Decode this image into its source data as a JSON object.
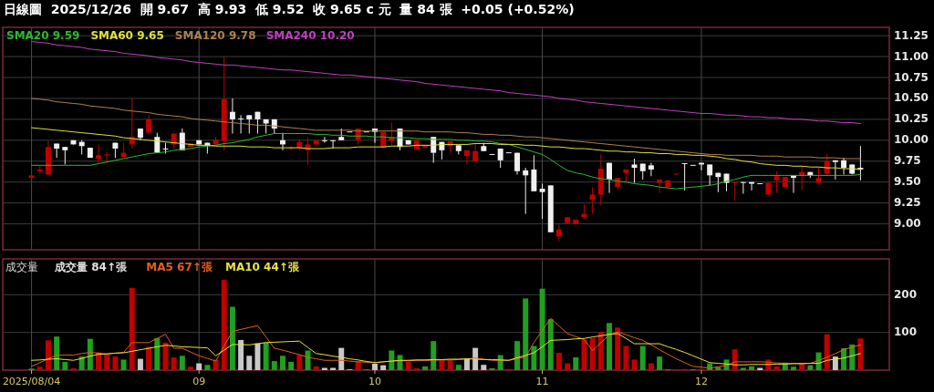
{
  "chart_data": [
    {
      "type": "candlestick",
      "title": "日線圖  2025/12/26  開 9.67  高 9.93  低 9.52  收 9.65 c 元  量 84 張  +0.05 (+0.52%)",
      "categories": [
        "2025/08/04",
        null,
        null,
        null,
        null,
        null,
        null,
        null,
        null,
        null,
        null,
        null,
        null,
        null,
        null,
        null,
        null,
        null,
        null,
        null,
        "09",
        null,
        null,
        null,
        null,
        null,
        null,
        null,
        null,
        null,
        null,
        null,
        null,
        null,
        null,
        null,
        null,
        null,
        null,
        null,
        null,
        "10",
        null,
        null,
        null,
        null,
        null,
        null,
        null,
        null,
        null,
        null,
        null,
        null,
        null,
        null,
        null,
        null,
        null,
        null,
        null,
        "11",
        null,
        null,
        null,
        null,
        null,
        null,
        null,
        null,
        null,
        null,
        null,
        null,
        null,
        null,
        null,
        null,
        null,
        null,
        "12",
        null,
        null,
        null,
        null,
        null,
        null,
        null,
        null,
        null,
        null,
        null,
        null,
        null,
        null,
        null,
        null,
        null,
        null,
        null
      ],
      "ohlc": [
        [
          9.55,
          9.59,
          9.54,
          9.58
        ],
        [
          9.63,
          9.7,
          9.6,
          9.65
        ],
        [
          9.59,
          9.99,
          9.59,
          9.92
        ],
        [
          9.96,
          9.96,
          9.79,
          9.9
        ],
        [
          9.92,
          9.92,
          9.71,
          9.88
        ],
        [
          10.0,
          10.0,
          9.95,
          9.95
        ],
        [
          9.98,
          10.0,
          9.83,
          9.93
        ],
        [
          9.91,
          9.91,
          9.79,
          9.79
        ],
        [
          9.78,
          9.95,
          9.73,
          9.82
        ],
        [
          9.82,
          9.86,
          9.72,
          9.83
        ],
        [
          9.97,
          9.97,
          9.79,
          9.9
        ],
        [
          9.8,
          9.97,
          9.8,
          9.85
        ],
        [
          9.95,
          10.5,
          9.9,
          10.04
        ],
        [
          10.14,
          10.14,
          10.0,
          10.03
        ],
        [
          10.09,
          10.3,
          10.09,
          10.25
        ],
        [
          10.04,
          10.09,
          9.85,
          9.85
        ],
        [
          9.9,
          9.97,
          9.84,
          9.89
        ],
        [
          9.95,
          10.08,
          9.9,
          10.08
        ],
        [
          10.09,
          10.14,
          9.88,
          9.88
        ],
        [
          9.92,
          9.96,
          9.92,
          9.96
        ],
        [
          10.0,
          10.0,
          9.95,
          9.95
        ],
        [
          9.97,
          9.97,
          9.84,
          9.94
        ],
        [
          9.95,
          10.04,
          9.95,
          10.0
        ],
        [
          9.99,
          11.0,
          9.88,
          10.49
        ],
        [
          10.34,
          10.5,
          10.08,
          10.25
        ],
        [
          10.26,
          10.3,
          10.08,
          10.25
        ],
        [
          10.3,
          10.3,
          10.08,
          10.25
        ],
        [
          10.34,
          10.34,
          10.08,
          10.25
        ],
        [
          10.25,
          10.25,
          10.08,
          10.2
        ],
        [
          10.25,
          10.25,
          10.08,
          10.14
        ],
        [
          10.0,
          10.09,
          9.88,
          9.95
        ],
        [
          9.9,
          9.93,
          9.88,
          9.91
        ],
        [
          9.91,
          10.01,
          9.88,
          9.98
        ],
        [
          9.88,
          10.03,
          9.71,
          9.95
        ],
        [
          9.95,
          10.0,
          9.95,
          10.0
        ],
        [
          10.0,
          10.04,
          9.97,
          9.99
        ],
        [
          10.0,
          10.0,
          9.9,
          9.99
        ],
        [
          10.04,
          10.14,
          10.0,
          10.0
        ],
        [
          10.1,
          10.1,
          10.1,
          10.1
        ],
        [
          10.0,
          10.14,
          9.95,
          10.14
        ],
        [
          10.1,
          10.1,
          10.1,
          10.1
        ],
        [
          10.14,
          10.14,
          9.97,
          10.1
        ],
        [
          9.91,
          10.1,
          9.91,
          10.1
        ],
        [
          9.99,
          10.21,
          9.94,
          10.04
        ],
        [
          10.14,
          10.14,
          9.88,
          9.92
        ],
        [
          10.0,
          10.0,
          9.95,
          9.95
        ],
        [
          9.89,
          10.0,
          9.89,
          10.0
        ],
        [
          9.91,
          9.94,
          9.91,
          9.94
        ],
        [
          10.04,
          10.04,
          9.73,
          9.85
        ],
        [
          9.98,
          9.98,
          9.77,
          9.88
        ],
        [
          9.93,
          9.99,
          9.85,
          9.99
        ],
        [
          9.94,
          9.94,
          9.83,
          9.87
        ],
        [
          9.81,
          9.88,
          9.71,
          9.88
        ],
        [
          9.75,
          9.96,
          9.75,
          9.87
        ],
        [
          9.93,
          9.97,
          9.87,
          9.87
        ],
        [
          9.83,
          9.83,
          9.83,
          9.83
        ],
        [
          9.9,
          9.9,
          9.67,
          9.76
        ],
        [
          9.85,
          9.85,
          9.85,
          9.85
        ],
        [
          9.85,
          9.85,
          9.59,
          9.63
        ],
        [
          9.64,
          9.67,
          9.12,
          9.58
        ],
        [
          9.65,
          9.82,
          9.39,
          9.39
        ],
        [
          9.42,
          9.48,
          9.06,
          9.38
        ],
        [
          9.46,
          9.46,
          8.9,
          8.9
        ],
        [
          8.85,
          8.99,
          8.79,
          8.93
        ],
        [
          9.01,
          9.08,
          9.01,
          9.08
        ],
        [
          9.0,
          9.05,
          9.0,
          9.05
        ],
        [
          9.08,
          9.23,
          9.06,
          9.12
        ],
        [
          9.29,
          9.44,
          9.12,
          9.35
        ],
        [
          9.35,
          9.83,
          9.22,
          9.66
        ],
        [
          9.73,
          9.73,
          9.37,
          9.53
        ],
        [
          9.44,
          9.55,
          9.41,
          9.55
        ],
        [
          9.61,
          9.65,
          9.5,
          9.65
        ],
        [
          9.71,
          9.78,
          9.49,
          9.67
        ],
        [
          9.72,
          9.72,
          9.53,
          9.63
        ],
        [
          9.7,
          9.73,
          9.57,
          9.65
        ],
        [
          9.49,
          9.53,
          9.37,
          9.53
        ],
        [
          9.44,
          9.52,
          9.44,
          9.52
        ],
        [
          9.59,
          9.6,
          9.59,
          9.6
        ],
        [
          9.72,
          9.72,
          9.4,
          9.72
        ],
        [
          9.7,
          9.7,
          9.7,
          9.7
        ],
        [
          9.73,
          9.73,
          9.64,
          9.71
        ],
        [
          9.71,
          9.71,
          9.46,
          9.58
        ],
        [
          9.61,
          9.61,
          9.38,
          9.56
        ],
        [
          9.6,
          9.6,
          9.39,
          9.49
        ],
        [
          9.49,
          9.5,
          9.28,
          9.5
        ],
        [
          9.5,
          9.5,
          9.36,
          9.49
        ],
        [
          9.5,
          9.5,
          9.4,
          9.48
        ],
        [
          9.48,
          9.48,
          9.48,
          9.48
        ],
        [
          9.35,
          9.49,
          9.35,
          9.49
        ],
        [
          9.52,
          9.63,
          9.37,
          9.57
        ],
        [
          9.44,
          9.56,
          9.44,
          9.56
        ],
        [
          9.58,
          9.58,
          9.37,
          9.55
        ],
        [
          9.58,
          9.69,
          9.41,
          9.62
        ],
        [
          9.62,
          9.62,
          9.55,
          9.58
        ],
        [
          9.49,
          9.68,
          9.49,
          9.55
        ],
        [
          9.6,
          9.83,
          9.57,
          9.75
        ],
        [
          9.76,
          9.76,
          9.53,
          9.74
        ],
        [
          9.76,
          9.79,
          9.59,
          9.67
        ],
        [
          9.71,
          9.71,
          9.59,
          9.6
        ],
        [
          9.67,
          9.93,
          9.52,
          9.65
        ]
      ],
      "colors": [
        "#c00000",
        "#c00000",
        "#c00000",
        "#f0f0f0",
        "#f0f0f0",
        "#f0f0f0",
        "#f0f0f0",
        "#f0f0f0",
        "#c00000",
        "#c00000",
        "#f0f0f0",
        "#c00000",
        "#c00000",
        "#f0f0f0",
        "#c00000",
        "#f0f0f0",
        "#f0f0f0",
        "#c00000",
        "#f0f0f0",
        "#c00000",
        "#f0f0f0",
        "#f0f0f0",
        "#c00000",
        "#c00000",
        "#f0f0f0",
        "#f0f0f0",
        "#f0f0f0",
        "#f0f0f0",
        "#f0f0f0",
        "#f0f0f0",
        "#f0f0f0",
        "#c00000",
        "#c00000",
        "#c00000",
        "#c00000",
        "#f0f0f0",
        "#f0f0f0",
        "#f0f0f0",
        "#f0f0f0",
        "#c00000",
        "#f0f0f0",
        "#f0f0f0",
        "#c00000",
        "#c00000",
        "#f0f0f0",
        "#f0f0f0",
        "#c00000",
        "#c00000",
        "#f0f0f0",
        "#f0f0f0",
        "#c00000",
        "#f0f0f0",
        "#c00000",
        "#c00000",
        "#f0f0f0",
        "#f0f0f0",
        "#f0f0f0",
        "#f0f0f0",
        "#f0f0f0",
        "#f0f0f0",
        "#f0f0f0",
        "#f0f0f0",
        "#f0f0f0",
        "#c00000",
        "#c00000",
        "#c00000",
        "#c00000",
        "#c00000",
        "#c00000",
        "#f0f0f0",
        "#c00000",
        "#c00000",
        "#f0f0f0",
        "#f0f0f0",
        "#f0f0f0",
        "#c00000",
        "#c00000",
        "#c00000",
        "#f0f0f0",
        "#f0f0f0",
        "#f0f0f0",
        "#f0f0f0",
        "#f0f0f0",
        "#f0f0f0",
        "#c00000",
        "#f0f0f0",
        "#f0f0f0",
        "#f0f0f0",
        "#c00000",
        "#c00000",
        "#c00000",
        "#f0f0f0",
        "#c00000",
        "#f0f0f0",
        "#c00000",
        "#c00000",
        "#f0f0f0",
        "#f0f0f0",
        "#f0f0f0",
        "#f0f0f0"
      ],
      "series": [
        {
          "type": "line",
          "name": "SMA20 9.59",
          "color": "#2eb82e",
          "values": [
            9.7,
            9.7,
            9.7,
            9.7,
            9.7,
            9.7,
            9.7,
            9.7,
            9.72,
            9.74,
            9.76,
            9.78,
            9.8,
            9.82,
            9.84,
            9.85,
            9.86,
            9.88,
            9.89,
            9.9,
            9.92,
            9.93,
            9.94,
            9.96,
            9.97,
            9.99,
            10.01,
            10.04,
            10.06,
            10.08,
            10.08,
            10.08,
            10.08,
            10.08,
            10.07,
            10.07,
            10.06,
            10.06,
            10.05,
            10.05,
            10.05,
            10.04,
            10.04,
            10.03,
            10.03,
            10.03,
            10.02,
            10.02,
            10.01,
            10.01,
            10.01,
            10.0,
            10.0,
            9.99,
            9.99,
            9.98,
            9.96,
            9.95,
            9.92,
            9.89,
            9.86,
            9.83,
            9.77,
            9.7,
            9.64,
            9.61,
            9.59,
            9.56,
            9.54,
            9.53,
            9.51,
            9.5,
            9.48,
            9.47,
            9.46,
            9.44,
            9.43,
            9.42,
            9.43,
            9.44,
            9.45,
            9.46,
            9.48,
            9.51,
            9.53,
            9.56,
            9.58,
            9.58,
            9.58,
            9.58,
            9.58,
            9.58,
            9.58,
            9.58,
            9.58,
            9.58,
            9.58,
            9.58,
            9.58,
            9.59
          ]
        },
        {
          "type": "line",
          "name": "SMA60 9.65",
          "color": "#e0e040",
          "values": [
            10.15,
            10.14,
            10.13,
            10.12,
            10.11,
            10.1,
            10.09,
            10.08,
            10.07,
            10.06,
            10.05,
            10.03,
            10.02,
            10.01,
            10.0,
            9.99,
            9.98,
            9.97,
            9.96,
            9.95,
            9.94,
            9.94,
            9.93,
            9.93,
            9.93,
            9.93,
            9.92,
            9.92,
            9.92,
            9.91,
            9.91,
            9.91,
            9.91,
            9.9,
            9.9,
            9.9,
            9.91,
            9.91,
            9.91,
            9.92,
            9.92,
            9.92,
            9.92,
            9.93,
            9.93,
            9.93,
            9.94,
            9.94,
            9.94,
            9.95,
            9.95,
            9.95,
            9.95,
            9.96,
            9.96,
            9.96,
            9.95,
            9.95,
            9.95,
            9.94,
            9.94,
            9.93,
            9.92,
            9.92,
            9.91,
            9.9,
            9.9,
            9.89,
            9.88,
            9.87,
            9.87,
            9.86,
            9.86,
            9.85,
            9.85,
            9.84,
            9.84,
            9.83,
            9.83,
            9.82,
            9.82,
            9.81,
            9.8,
            9.78,
            9.77,
            9.75,
            9.74,
            9.72,
            9.71,
            9.7,
            9.7,
            9.69,
            9.69,
            9.68,
            9.68,
            9.67,
            9.67,
            9.66,
            9.66,
            9.65
          ]
        },
        {
          "type": "line",
          "name": "SMA120 9.78",
          "color": "#b08050",
          "values": [
            10.5,
            10.49,
            10.48,
            10.46,
            10.45,
            10.44,
            10.43,
            10.41,
            10.4,
            10.39,
            10.38,
            10.36,
            10.35,
            10.34,
            10.33,
            10.31,
            10.3,
            10.29,
            10.28,
            10.26,
            10.25,
            10.24,
            10.23,
            10.22,
            10.21,
            10.2,
            10.19,
            10.18,
            10.18,
            10.17,
            10.16,
            10.15,
            10.14,
            10.13,
            10.12,
            10.12,
            10.12,
            10.12,
            10.12,
            10.11,
            10.11,
            10.11,
            10.11,
            10.11,
            10.11,
            10.11,
            10.11,
            10.1,
            10.1,
            10.1,
            10.1,
            10.09,
            10.09,
            10.08,
            10.07,
            10.07,
            10.06,
            10.06,
            10.05,
            10.04,
            10.04,
            10.03,
            10.02,
            10.01,
            10.0,
            9.99,
            9.98,
            9.97,
            9.96,
            9.95,
            9.94,
            9.93,
            9.92,
            9.91,
            9.9,
            9.89,
            9.88,
            9.87,
            9.86,
            9.85,
            9.84,
            9.83,
            9.83,
            9.82,
            9.82,
            9.82,
            9.82,
            9.81,
            9.81,
            9.81,
            9.8,
            9.8,
            9.8,
            9.8,
            9.79,
            9.79,
            9.79,
            9.78,
            9.78,
            9.78
          ]
        },
        {
          "type": "line",
          "name": "SMA240 10.20",
          "color": "#c040c0",
          "values": [
            11.18,
            11.17,
            11.16,
            11.14,
            11.13,
            11.12,
            11.11,
            11.09,
            11.08,
            11.07,
            11.06,
            11.04,
            11.03,
            11.02,
            11.01,
            10.99,
            10.98,
            10.97,
            10.96,
            10.94,
            10.93,
            10.92,
            10.91,
            10.9,
            10.9,
            10.89,
            10.88,
            10.87,
            10.86,
            10.85,
            10.84,
            10.84,
            10.83,
            10.82,
            10.81,
            10.8,
            10.79,
            10.78,
            10.78,
            10.77,
            10.76,
            10.75,
            10.74,
            10.73,
            10.72,
            10.71,
            10.7,
            10.68,
            10.67,
            10.66,
            10.65,
            10.64,
            10.63,
            10.62,
            10.61,
            10.6,
            10.59,
            10.57,
            10.56,
            10.55,
            10.54,
            10.53,
            10.52,
            10.5,
            10.49,
            10.48,
            10.46,
            10.45,
            10.44,
            10.43,
            10.42,
            10.41,
            10.4,
            10.39,
            10.38,
            10.37,
            10.36,
            10.35,
            10.34,
            10.33,
            10.32,
            10.32,
            10.31,
            10.3,
            10.3,
            10.29,
            10.28,
            10.28,
            10.27,
            10.27,
            10.26,
            10.25,
            10.25,
            10.24,
            10.23,
            10.23,
            10.22,
            10.21,
            10.21,
            10.2
          ]
        }
      ],
      "ylim": [
        8.69,
        11.35
      ],
      "yticks": [
        {
          "value": 9,
          "label": "9.00"
        },
        {
          "value": 9.25,
          "label": "9.25"
        },
        {
          "value": 9.5,
          "label": "9.50"
        },
        {
          "value": 9.75,
          "label": "9.75"
        },
        {
          "value": 10,
          "label": "10.00"
        },
        {
          "value": 10.25,
          "label": "10.25"
        },
        {
          "value": 10.5,
          "label": "10.50"
        },
        {
          "value": 10.75,
          "label": "10.75"
        },
        {
          "value": 11,
          "label": "11.00"
        },
        {
          "value": 11.25,
          "label": "11.25"
        }
      ],
      "grid": true,
      "tick_labels": "y",
      "legend": "top left"
    },
    {
      "type": "bar",
      "title": "成交量",
      "categories": [
        "2025/08/04",
        null,
        null,
        null,
        null,
        null,
        null,
        null,
        null,
        null,
        null,
        null,
        null,
        null,
        null,
        null,
        null,
        null,
        null,
        null,
        "09",
        null,
        null,
        null,
        null,
        null,
        null,
        null,
        null,
        null,
        null,
        null,
        null,
        null,
        null,
        null,
        null,
        null,
        null,
        null,
        null,
        "10",
        null,
        null,
        null,
        null,
        null,
        null,
        null,
        null,
        null,
        null,
        null,
        null,
        null,
        null,
        null,
        null,
        null,
        null,
        null,
        "11",
        null,
        null,
        null,
        null,
        null,
        null,
        null,
        null,
        null,
        null,
        null,
        null,
        null,
        null,
        null,
        null,
        null,
        null,
        "12",
        null,
        null,
        null,
        null,
        null,
        null,
        null,
        null,
        null,
        null,
        null,
        null,
        null,
        null,
        null,
        null,
        null,
        null,
        null
      ],
      "series": [
        {
          "type": "bar",
          "name": "成交量 84↑張",
          "color": "#e0e0e0",
          "colors": [
            "#1fa01f",
            "#c00000",
            "#c00000",
            "#1fa01f",
            "#1fa01f",
            "#c00000",
            "#1fa01f",
            "#1fa01f",
            "#c00000",
            "#c00000",
            "#c00000",
            "#1fa01f",
            "#c00000",
            "#c8c8c8",
            "#c00000",
            "#1fa01f",
            "#c00000",
            "#c00000",
            "#1fa01f",
            "#c00000",
            "#c8c8c8",
            "#1fa01f",
            "#c00000",
            "#c00000",
            "#1fa01f",
            "#c8c8c8",
            "#c8c8c8",
            "#c8c8c8",
            "#1fa01f",
            "#1fa01f",
            "#1fa01f",
            "#1fa01f",
            "#c00000",
            "#1fa01f",
            "#c00000",
            "#c8c8c8",
            "#c8c8c8",
            "#c8c8c8",
            "#c8c8c8",
            "#c00000",
            "#1fa01f",
            "#c8c8c8",
            "#c8c8c8",
            "#1fa01f",
            "#1fa01f",
            "#c00000",
            "#c00000",
            "#1fa01f",
            "#1fa01f",
            "#c00000",
            "#c00000",
            "#1fa01f",
            "#c8c8c8",
            "#c8c8c8",
            "#c8c8c8",
            "#1fa01f",
            "#1fa01f",
            "#c00000",
            "#1fa01f",
            "#1fa01f",
            "#1fa01f",
            "#1fa01f",
            "#1fa01f",
            "#c00000",
            "#c00000",
            "#1fa01f",
            "#c00000",
            "#c00000",
            "#c00000",
            "#1fa01f",
            "#c00000",
            "#c00000",
            "#c00000",
            "#1fa01f",
            "#c00000",
            "#1fa01f",
            "#1fa01f",
            "#c00000",
            "#c00000",
            "#1fa01f",
            "#c00000",
            "#1fa01f",
            "#1fa01f",
            "#1fa01f",
            "#c00000",
            "#1fa01f",
            "#1fa01f",
            "#c8c8c8",
            "#c00000",
            "#c00000",
            "#1fa01f",
            "#1fa01f",
            "#c00000",
            "#1fa01f",
            "#1fa01f",
            "#c00000",
            "#c8c8c8",
            "#1fa01f",
            "#1fa01f",
            "#c00000"
          ],
          "values": [
            4,
            9,
            79,
            89,
            22,
            5,
            36,
            83,
            47,
            41,
            36,
            28,
            218,
            30,
            62,
            85,
            73,
            34,
            38,
            9,
            18,
            14,
            28,
            239,
            168,
            80,
            38,
            71,
            73,
            24,
            38,
            22,
            40,
            52,
            10,
            6,
            6,
            59,
            2,
            24,
            2,
            17,
            13,
            52,
            40,
            22,
            5,
            10,
            77,
            26,
            26,
            14,
            30,
            59,
            14,
            5,
            40,
            3,
            77,
            190,
            64,
            216,
            135,
            46,
            18,
            34,
            81,
            85,
            101,
            125,
            113,
            64,
            28,
            64,
            18,
            36,
            2,
            2,
            3,
            2,
            3,
            18,
            8,
            28,
            55,
            6,
            10,
            6,
            28,
            10,
            20,
            9,
            18,
            13,
            47,
            95,
            36,
            58,
            68,
            84
          ]
        },
        {
          "type": "line",
          "name": "MA5 67↑張",
          "color": "#e06020",
          "values": [
            10,
            20,
            30,
            40,
            40,
            40,
            44,
            47,
            45,
            43,
            45,
            47,
            73,
            73,
            73,
            84,
            95,
            58,
            58,
            48,
            38,
            31,
            24,
            64,
            103,
            108,
            113,
            118,
            88,
            58,
            53,
            47,
            41,
            34,
            30,
            26,
            26,
            26,
            24,
            22,
            21,
            20,
            22,
            24,
            25,
            25,
            26,
            26,
            26,
            27,
            27,
            28,
            30,
            32,
            29,
            26,
            26,
            26,
            30,
            35,
            73,
            105,
            137,
            117,
            97,
            89,
            81,
            52,
            73,
            93,
            101,
            94,
            86,
            79,
            67,
            54,
            42,
            30,
            20,
            10,
            8,
            5,
            9,
            12,
            22,
            22,
            22,
            22,
            21,
            19,
            18,
            18,
            18,
            18,
            26,
            34,
            44,
            54,
            61,
            67
          ]
        },
        {
          "type": "line",
          "name": "MA10 44↑張",
          "color": "#e8e040",
          "values": [
            26,
            27,
            29,
            30,
            28,
            26,
            31,
            37,
            42,
            43,
            45,
            46,
            50,
            54,
            58,
            62,
            66,
            64,
            62,
            61,
            60,
            59,
            38,
            53,
            68,
            68,
            67,
            70,
            73,
            74,
            75,
            76,
            77,
            60,
            44,
            41,
            37,
            34,
            30,
            27,
            23,
            20,
            22,
            24,
            26,
            26,
            27,
            27,
            28,
            28,
            29,
            29,
            30,
            29,
            28,
            28,
            27,
            26,
            33,
            39,
            46,
            62,
            79,
            80,
            81,
            83,
            84,
            88,
            91,
            95,
            97,
            84,
            70,
            70,
            70,
            70,
            62,
            55,
            47,
            38,
            29,
            20,
            18,
            16,
            14,
            14,
            15,
            15,
            15,
            16,
            16,
            17,
            17,
            18,
            18,
            26,
            29,
            32,
            38,
            44
          ]
        }
      ],
      "ylim": [
        0,
        295
      ],
      "yticks": [
        100,
        200
      ],
      "grid": true,
      "legend": "top left"
    }
  ]
}
